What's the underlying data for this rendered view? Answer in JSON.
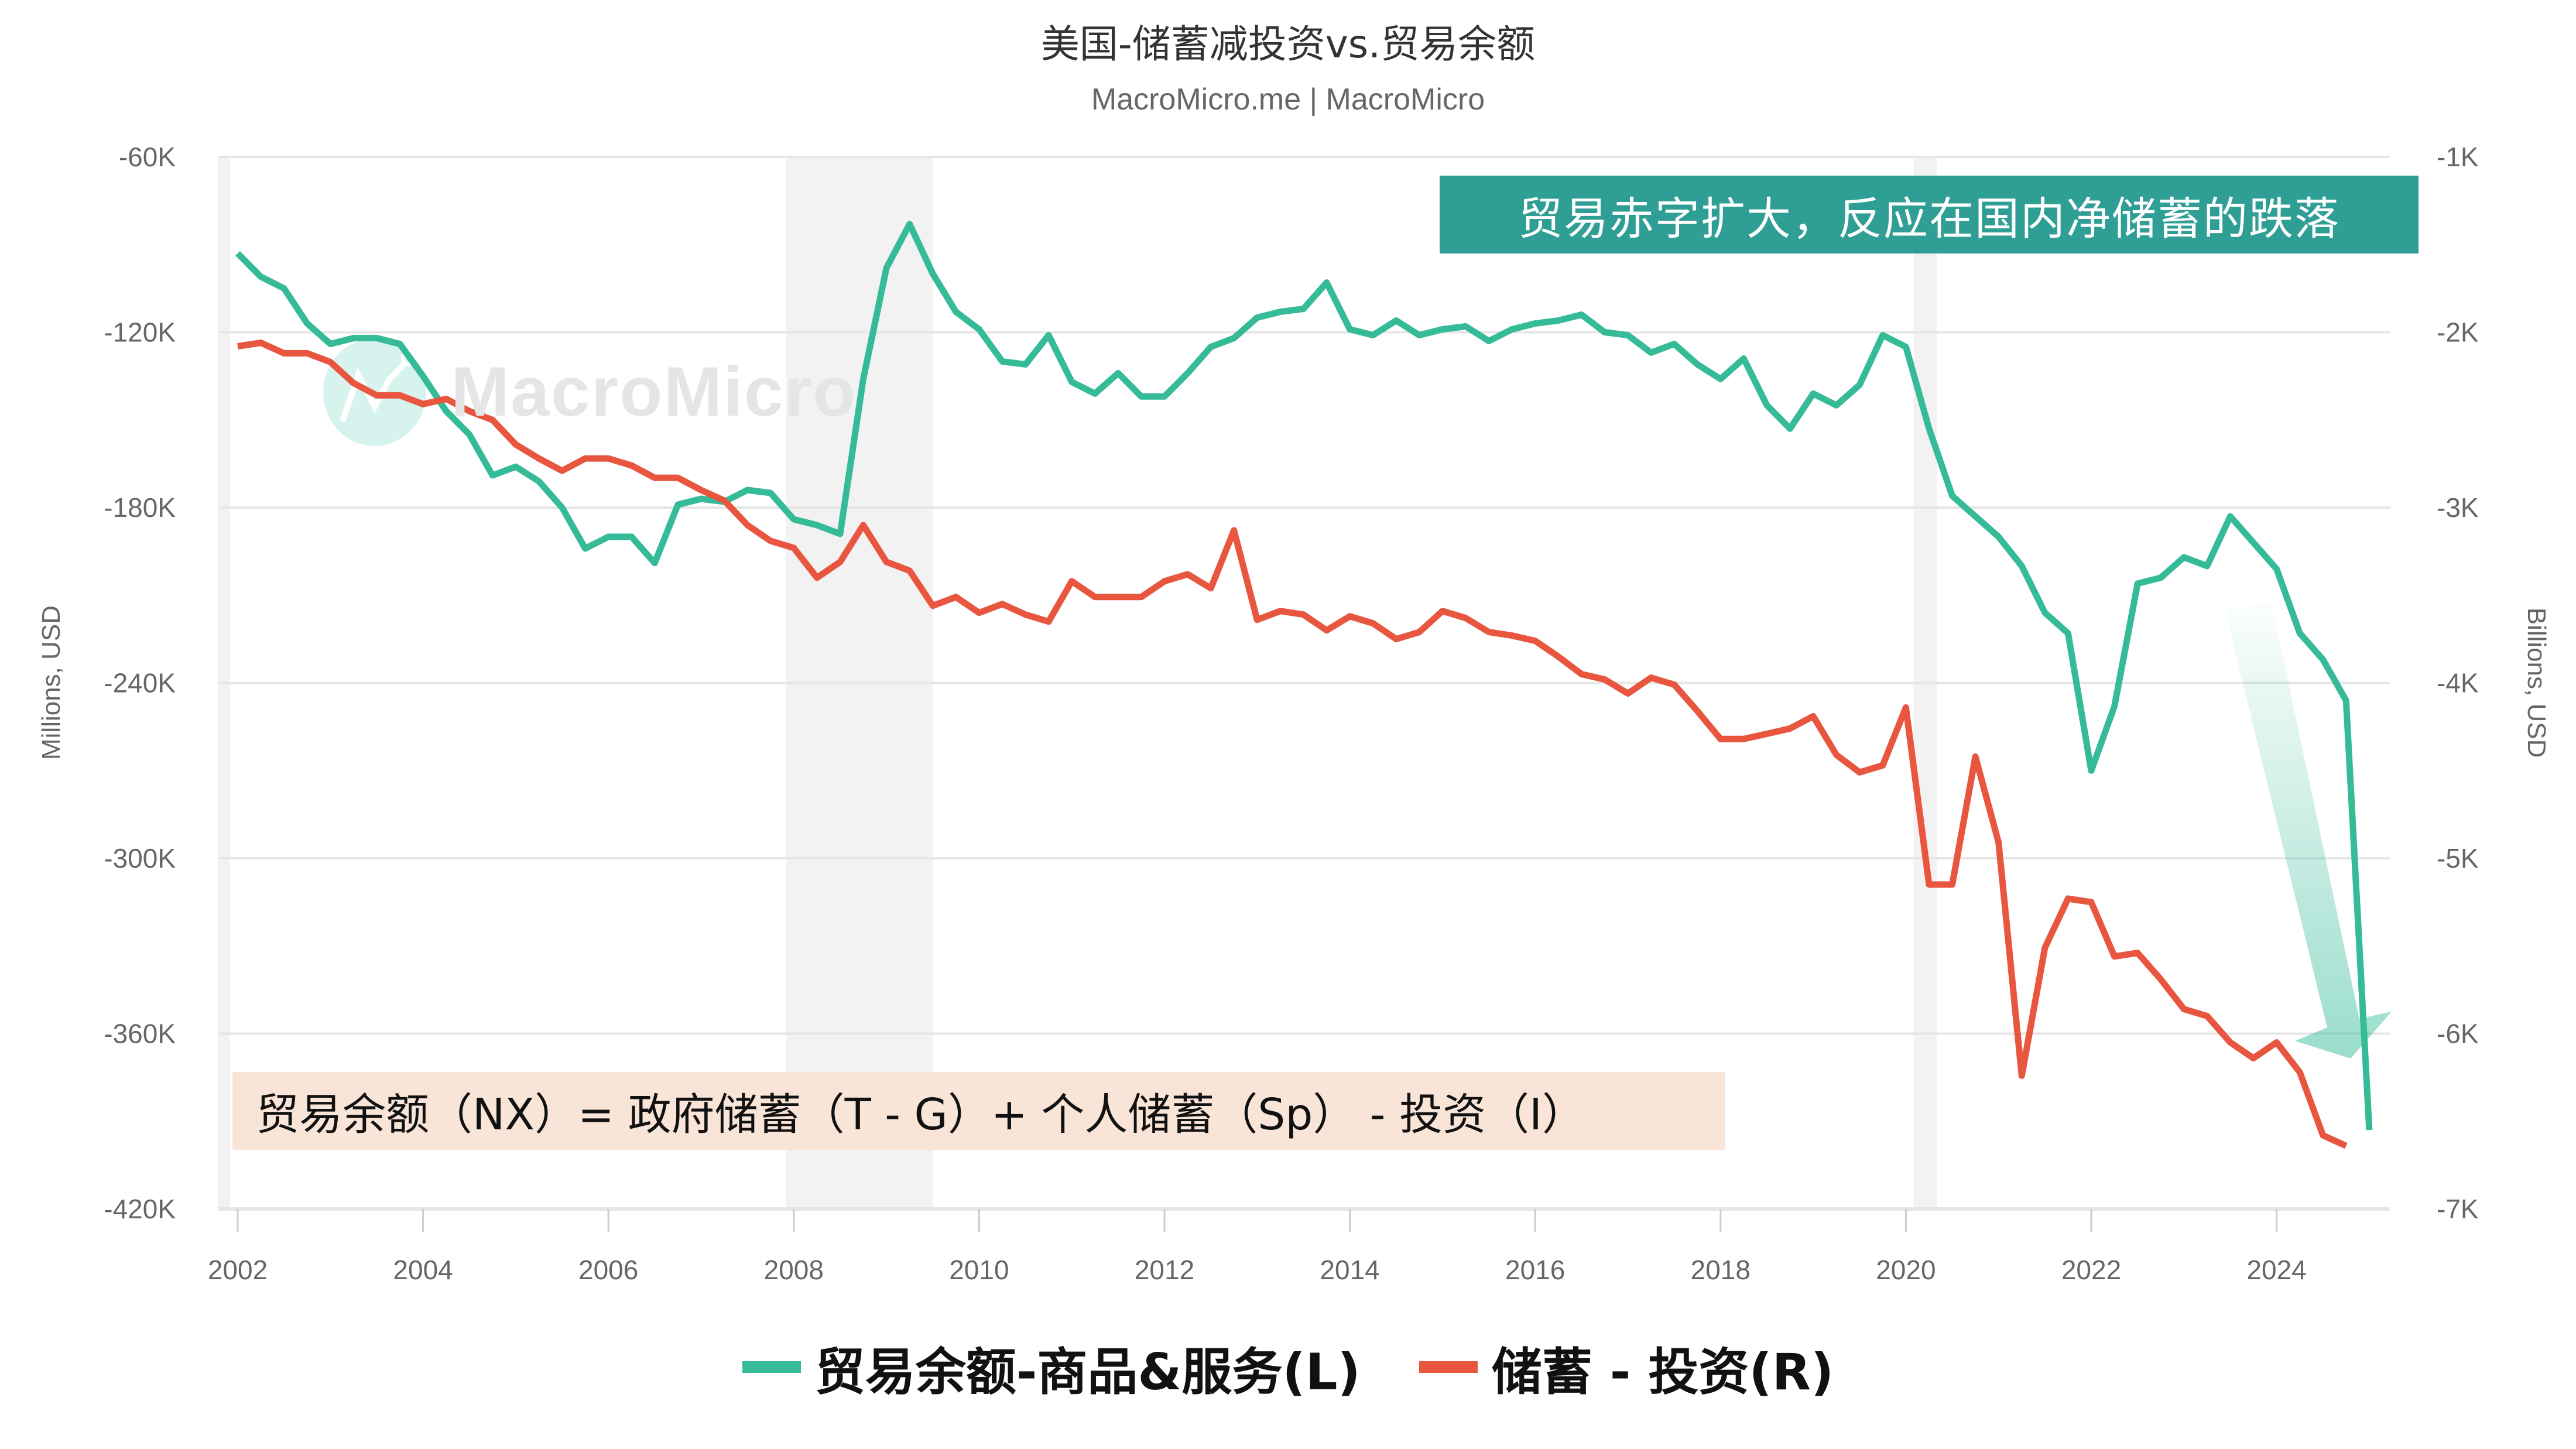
{
  "header": {
    "title": "美国-储蓄减投资vs.贸易余额",
    "subtitle": "MacroMicro.me | MacroMicro"
  },
  "watermark": {
    "text": "MacroMicro",
    "icon": "macromicro-logo-icon"
  },
  "annotations": {
    "top_right": "贸易赤字扩大，反应在国内净储蓄的跌落",
    "bottom_left": "贸易余额（NX）= 政府储蓄（T - G）+ 个人储蓄（Sp） - 投资（I）"
  },
  "legend": {
    "series1_label": "贸易余额-商品&服务(L)",
    "series2_label": "储蓄 - 投资(R)"
  },
  "colors": {
    "series1": "#36bb98",
    "series2": "#e85640",
    "teal_box": "#2f9e94",
    "peach_box": "#f9e5d8",
    "recession_band": "#f2f2f2",
    "gridline": "#e6e6e6"
  },
  "chart_data": {
    "type": "line",
    "title": "美国-储蓄减投资vs.贸易余额",
    "subtitle": "MacroMicro.me | MacroMicro",
    "xlabel": "",
    "ylabel": "Millions, USD",
    "ylabel_right": "Billions, USD",
    "ylim": [
      -420000,
      -60000
    ],
    "ylim_right": [
      -7000,
      -1000
    ],
    "yticks_left": [
      "-60K",
      "-120K",
      "-180K",
      "-240K",
      "-300K",
      "-360K",
      "-420K"
    ],
    "yticks_right": [
      "-1K",
      "-2K",
      "-3K",
      "-4K",
      "-5K",
      "-6K",
      "-7K"
    ],
    "xticks": [
      "2002",
      "2004",
      "2006",
      "2008",
      "2010",
      "2012",
      "2014",
      "2016",
      "2018",
      "2020",
      "2022",
      "2024"
    ],
    "grid": true,
    "legend_position": "bottom",
    "recession_bands": [
      [
        "2001-03",
        "2001-11"
      ],
      [
        "2007-12",
        "2009-06"
      ],
      [
        "2020-02",
        "2020-04"
      ]
    ],
    "frequency": "quarterly",
    "x_start": "2002Q1",
    "series": [
      {
        "name": "贸易余额-商品&服务(L)",
        "axis": "left",
        "unit": "Millions, USD",
        "values": [
          -93000,
          -101000,
          -105000,
          -117000,
          -124000,
          -122000,
          -122000,
          -124000,
          -135000,
          -147000,
          -155000,
          -169000,
          -166000,
          -171000,
          -180000,
          -194000,
          -190000,
          -190000,
          -199000,
          -179000,
          -177000,
          -178000,
          -174000,
          -175000,
          -184000,
          -186000,
          -189000,
          -136000,
          -98000,
          -83000,
          -100000,
          -113000,
          -119000,
          -130000,
          -131000,
          -121000,
          -137000,
          -141000,
          -134000,
          -142000,
          -142000,
          -134000,
          -125000,
          -122000,
          -115000,
          -113000,
          -112000,
          -103000,
          -119000,
          -121000,
          -116000,
          -121000,
          -119000,
          -118000,
          -123000,
          -119000,
          -117000,
          -116000,
          -114000,
          -120000,
          -121000,
          -127000,
          -124000,
          -131000,
          -136000,
          -129000,
          -145000,
          -153000,
          -141000,
          -145000,
          -138000,
          -121000,
          -125000,
          -153000,
          -176000,
          -183000,
          -190000,
          -200000,
          -216000,
          -223000,
          -270000,
          -248000,
          -206000,
          -204000,
          -197000,
          -200000,
          -183000,
          -192000,
          -201000,
          -223000,
          -232000,
          -246000,
          -393000
        ]
      },
      {
        "name": "储蓄 - 投资(R)",
        "axis": "right",
        "unit": "Billions, USD",
        "values": [
          -2080,
          -2060,
          -2120,
          -2120,
          -2170,
          -2290,
          -2360,
          -2360,
          -2410,
          -2380,
          -2450,
          -2500,
          -2640,
          -2720,
          -2790,
          -2720,
          -2720,
          -2760,
          -2830,
          -2830,
          -2900,
          -2960,
          -3100,
          -3190,
          -3230,
          -3400,
          -3310,
          -3100,
          -3310,
          -3360,
          -3560,
          -3510,
          -3600,
          -3550,
          -3610,
          -3650,
          -3420,
          -3510,
          -3510,
          -3510,
          -3420,
          -3380,
          -3460,
          -3130,
          -3640,
          -3590,
          -3610,
          -3700,
          -3620,
          -3660,
          -3750,
          -3710,
          -3590,
          -3630,
          -3710,
          -3730,
          -3760,
          -3850,
          -3950,
          -3980,
          -4060,
          -3970,
          -4010,
          -4160,
          -4320,
          -4320,
          -4290,
          -4260,
          -4190,
          -4410,
          -4510,
          -4470,
          -4140,
          -5150,
          -5150,
          -4420,
          -4910,
          -6240,
          -5510,
          -5230,
          -5250,
          -5560,
          -5540,
          -5690,
          -5860,
          -5900,
          -6050,
          -6140,
          -6050,
          -6220,
          -6580,
          -6640
        ]
      }
    ]
  }
}
